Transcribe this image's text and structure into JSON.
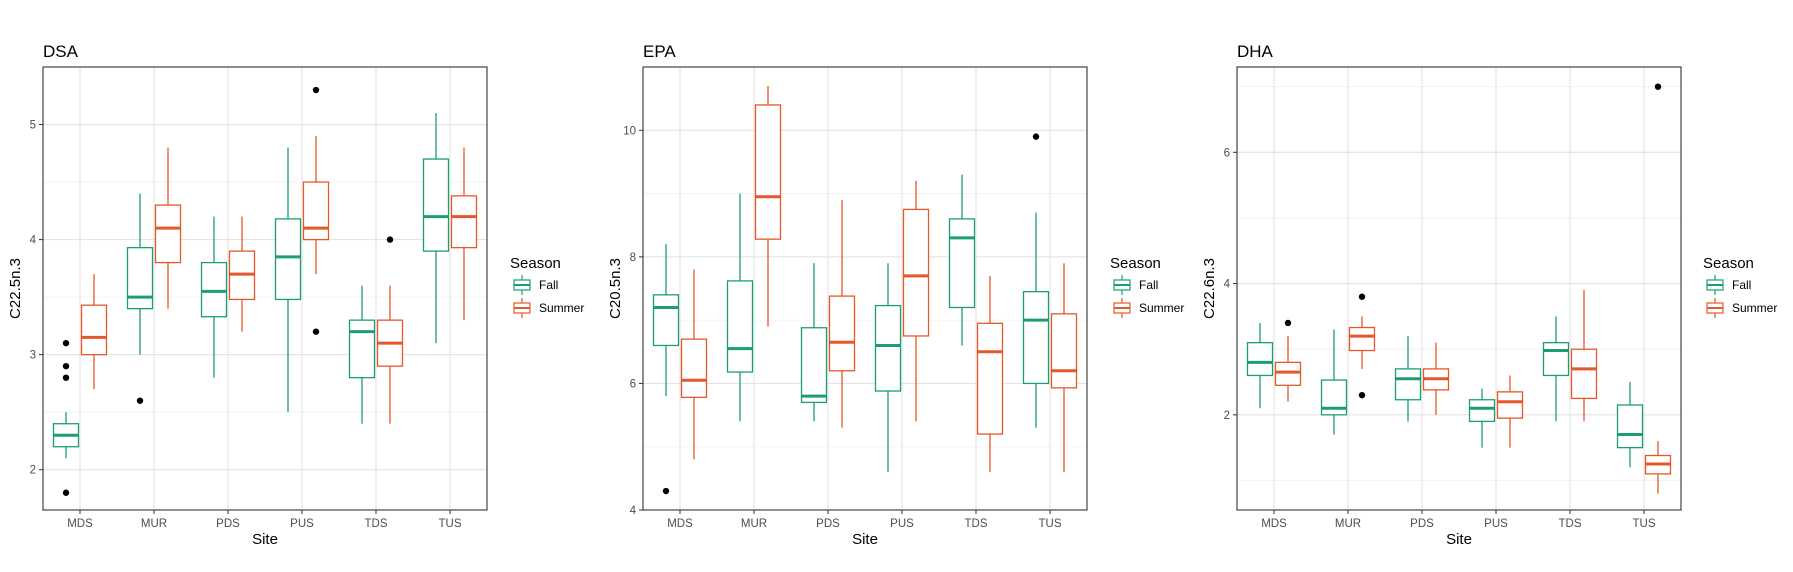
{
  "chart_data": [
    {
      "type": "boxplot",
      "title": "DSA",
      "xlabel": "Site",
      "ylabel": "C22.5n.3",
      "ylim": [
        1.65,
        5.5
      ],
      "yticks": [
        2,
        3,
        4,
        5
      ],
      "categories": [
        "MDS",
        "MUR",
        "PDS",
        "PUS",
        "TDS",
        "TUS"
      ],
      "legend": {
        "title": "Season",
        "position": "right"
      },
      "series": [
        {
          "name": "Fall",
          "color": "#1b9e77",
          "boxes": [
            {
              "min": 2.1,
              "q1": 2.2,
              "median": 2.3,
              "q3": 2.4,
              "max": 2.5,
              "outliers": [
                3.1,
                2.9,
                2.8,
                1.8
              ]
            },
            {
              "min": 3.0,
              "q1": 3.4,
              "median": 3.5,
              "q3": 3.93,
              "max": 4.4,
              "outliers": [
                2.6
              ]
            },
            {
              "min": 2.8,
              "q1": 3.33,
              "median": 3.55,
              "q3": 3.8,
              "max": 4.2,
              "outliers": []
            },
            {
              "min": 2.5,
              "q1": 3.48,
              "median": 3.85,
              "q3": 4.18,
              "max": 4.8,
              "outliers": []
            },
            {
              "min": 2.4,
              "q1": 2.8,
              "median": 3.2,
              "q3": 3.3,
              "max": 3.6,
              "outliers": []
            },
            {
              "min": 3.1,
              "q1": 3.9,
              "median": 4.2,
              "q3": 4.7,
              "max": 5.1,
              "outliers": []
            }
          ]
        },
        {
          "name": "Summer",
          "color": "#e6582a",
          "boxes": [
            {
              "min": 2.7,
              "q1": 3.0,
              "median": 3.15,
              "q3": 3.43,
              "max": 3.7,
              "outliers": []
            },
            {
              "min": 3.4,
              "q1": 3.8,
              "median": 4.1,
              "q3": 4.3,
              "max": 4.8,
              "outliers": []
            },
            {
              "min": 3.2,
              "q1": 3.48,
              "median": 3.7,
              "q3": 3.9,
              "max": 4.2,
              "outliers": []
            },
            {
              "min": 3.7,
              "q1": 4.0,
              "median": 4.1,
              "q3": 4.5,
              "max": 4.9,
              "outliers": [
                5.3,
                3.2
              ]
            },
            {
              "min": 2.4,
              "q1": 2.9,
              "median": 3.1,
              "q3": 3.3,
              "max": 3.6,
              "outliers": [
                4.0
              ]
            },
            {
              "min": 3.3,
              "q1": 3.93,
              "median": 4.2,
              "q3": 4.38,
              "max": 4.8,
              "outliers": []
            }
          ]
        }
      ]
    },
    {
      "type": "boxplot",
      "title": "EPA",
      "xlabel": "Site",
      "ylabel": "C20.5n.3",
      "ylim": [
        4.0,
        11.0
      ],
      "yticks": [
        4,
        6,
        8,
        10
      ],
      "categories": [
        "MDS",
        "MUR",
        "PDS",
        "PUS",
        "TDS",
        "TUS"
      ],
      "legend": {
        "title": "Season",
        "position": "right"
      },
      "series": [
        {
          "name": "Fall",
          "color": "#1b9e77",
          "boxes": [
            {
              "min": 5.8,
              "q1": 6.6,
              "median": 7.2,
              "q3": 7.4,
              "max": 8.2,
              "outliers": [
                4.3
              ]
            },
            {
              "min": 5.4,
              "q1": 6.18,
              "median": 6.55,
              "q3": 7.62,
              "max": 9.0,
              "outliers": []
            },
            {
              "min": 5.4,
              "q1": 5.7,
              "median": 5.8,
              "q3": 6.88,
              "max": 7.9,
              "outliers": []
            },
            {
              "min": 4.6,
              "q1": 5.88,
              "median": 6.6,
              "q3": 7.23,
              "max": 7.9,
              "outliers": []
            },
            {
              "min": 6.6,
              "q1": 7.2,
              "median": 8.3,
              "q3": 8.6,
              "max": 9.3,
              "outliers": []
            },
            {
              "min": 5.3,
              "q1": 6.0,
              "median": 7.0,
              "q3": 7.45,
              "max": 8.7,
              "outliers": [
                9.9
              ]
            }
          ]
        },
        {
          "name": "Summer",
          "color": "#e6582a",
          "boxes": [
            {
              "min": 4.8,
              "q1": 5.78,
              "median": 6.05,
              "q3": 6.7,
              "max": 7.8,
              "outliers": []
            },
            {
              "min": 6.9,
              "q1": 8.28,
              "median": 8.95,
              "q3": 10.4,
              "max": 10.7,
              "outliers": []
            },
            {
              "min": 5.3,
              "q1": 6.2,
              "median": 6.65,
              "q3": 7.38,
              "max": 8.9,
              "outliers": []
            },
            {
              "min": 5.4,
              "q1": 6.75,
              "median": 7.7,
              "q3": 8.75,
              "max": 9.2,
              "outliers": []
            },
            {
              "min": 4.6,
              "q1": 5.2,
              "median": 6.5,
              "q3": 6.95,
              "max": 7.7,
              "outliers": []
            },
            {
              "min": 4.6,
              "q1": 5.93,
              "median": 6.2,
              "q3": 7.1,
              "max": 7.9,
              "outliers": []
            }
          ]
        }
      ]
    },
    {
      "type": "boxplot",
      "title": "DHA",
      "xlabel": "Site",
      "ylabel": "C22.6n.3",
      "ylim": [
        0.55,
        7.3
      ],
      "yticks": [
        2,
        4,
        6
      ],
      "categories": [
        "MDS",
        "MUR",
        "PDS",
        "PUS",
        "TDS",
        "TUS"
      ],
      "legend": {
        "title": "Season",
        "position": "right"
      },
      "series": [
        {
          "name": "Fall",
          "color": "#1b9e77",
          "boxes": [
            {
              "min": 2.1,
              "q1": 2.6,
              "median": 2.8,
              "q3": 3.1,
              "max": 3.4,
              "outliers": []
            },
            {
              "min": 1.7,
              "q1": 2.0,
              "median": 2.1,
              "q3": 2.53,
              "max": 3.3,
              "outliers": []
            },
            {
              "min": 1.9,
              "q1": 2.23,
              "median": 2.55,
              "q3": 2.7,
              "max": 3.2,
              "outliers": []
            },
            {
              "min": 1.5,
              "q1": 1.9,
              "median": 2.1,
              "q3": 2.23,
              "max": 2.4,
              "outliers": []
            },
            {
              "min": 1.9,
              "q1": 2.6,
              "median": 2.98,
              "q3": 3.1,
              "max": 3.5,
              "outliers": []
            },
            {
              "min": 1.2,
              "q1": 1.5,
              "median": 1.7,
              "q3": 2.15,
              "max": 2.5,
              "outliers": []
            }
          ]
        },
        {
          "name": "Summer",
          "color": "#e6582a",
          "boxes": [
            {
              "min": 2.2,
              "q1": 2.45,
              "median": 2.65,
              "q3": 2.8,
              "max": 3.2,
              "outliers": [
                3.4
              ]
            },
            {
              "min": 2.7,
              "q1": 2.98,
              "median": 3.2,
              "q3": 3.33,
              "max": 3.5,
              "outliers": [
                3.8,
                2.3
              ]
            },
            {
              "min": 2.0,
              "q1": 2.38,
              "median": 2.55,
              "q3": 2.7,
              "max": 3.1,
              "outliers": []
            },
            {
              "min": 1.5,
              "q1": 1.95,
              "median": 2.2,
              "q3": 2.35,
              "max": 2.6,
              "outliers": []
            },
            {
              "min": 1.9,
              "q1": 2.25,
              "median": 2.7,
              "q3": 3.0,
              "max": 3.9,
              "outliers": []
            },
            {
              "min": 0.8,
              "q1": 1.1,
              "median": 1.25,
              "q3": 1.38,
              "max": 1.6,
              "outliers": [
                7.0
              ]
            }
          ]
        }
      ]
    }
  ]
}
